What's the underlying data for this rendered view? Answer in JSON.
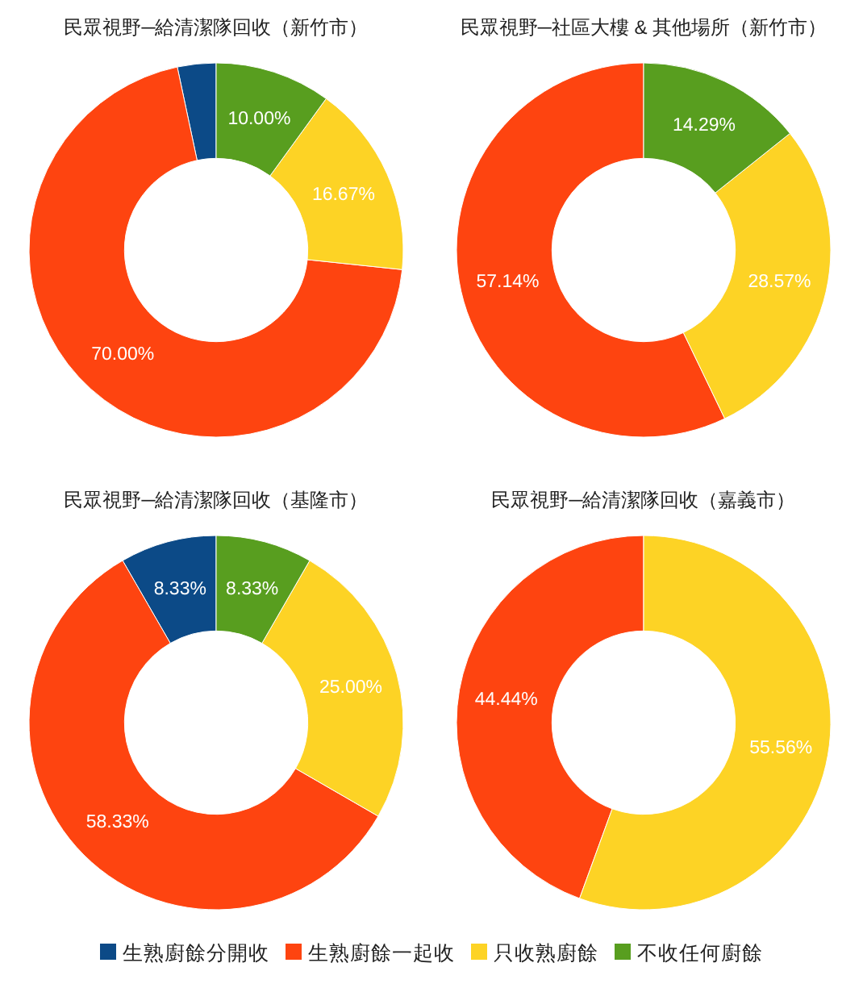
{
  "chart_data": [
    {
      "type": "donut",
      "title": "民眾視野─給清潔隊回收（新竹市）",
      "values": [
        3.33,
        70,
        16.67,
        10
      ],
      "colors": [
        "#0c4a87",
        "#fe4410",
        "#fdd325",
        "#589e1f"
      ],
      "value_labels": [
        null,
        "70.00%",
        "16.67%",
        "10.00%"
      ]
    },
    {
      "type": "donut",
      "title": "民眾視野─社區大樓 & 其他場所（新竹市）",
      "values": [
        57.14,
        28.57,
        14.29
      ],
      "colors": [
        "#fe4410",
        "#fdd325",
        "#589e1f"
      ],
      "value_labels": [
        "57.14%",
        "28.57%",
        "14.29%"
      ]
    },
    {
      "type": "donut",
      "title": "民眾視野─給清潔隊回收（基隆市）",
      "categories": [
        "生熟廚餘分開收",
        "生熟廚餘一起收",
        "只收熟廚餘",
        "不收任何廚餘"
      ],
      "values": [
        8.33,
        58.33,
        25,
        8.33
      ],
      "colors": [
        "#0c4a87",
        "#fe4410",
        "#fdd325",
        "#589e1f"
      ],
      "value_labels": [
        "8.33%",
        "58.33%",
        "25.00%",
        "8.33%"
      ],
      "legend": "bottom"
    },
    {
      "type": "donut",
      "title": "民眾視野─給清潔隊回收（嘉義市）",
      "values": [
        44.44,
        55.56
      ],
      "colors": [
        "#fe4410",
        "#fdd325"
      ],
      "value_labels": [
        "44.44%",
        "55.56%"
      ]
    }
  ]
}
